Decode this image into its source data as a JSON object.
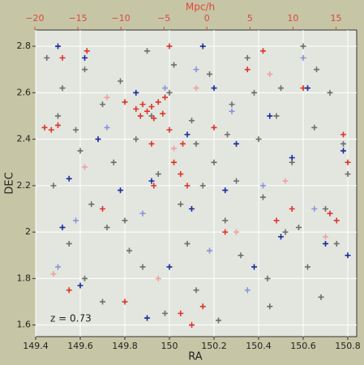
{
  "chart_data": {
    "type": "scatter",
    "xlabel": "RA",
    "ylabel": "DEC",
    "x2label": "Mpc/h",
    "annotation": "z = 0.73",
    "xlim": [
      149.4,
      150.84
    ],
    "ylim": [
      1.55,
      2.87
    ],
    "x2lim": [
      -19.9,
      17.4
    ],
    "xticks": [
      149.4,
      149.6,
      149.8,
      150.0,
      150.2,
      150.4,
      150.6,
      150.8
    ],
    "yticks": [
      1.6,
      1.8,
      2.0,
      2.2,
      2.4,
      2.6,
      2.8
    ],
    "x2ticks": [
      {
        "value": -20,
        "label": "−20"
      },
      {
        "value": -15,
        "label": "−15"
      },
      {
        "value": -10,
        "label": "−10"
      },
      {
        "value": -5,
        "label": "−5"
      },
      0,
      5,
      10,
      15
    ],
    "grid": true,
    "series": [
      {
        "color": "#6e6e6e",
        "x": [
          149.45,
          149.52,
          149.58,
          149.62,
          149.7,
          149.75,
          149.48,
          149.55,
          149.62,
          149.7,
          149.8,
          149.85,
          149.9,
          149.95,
          150.0,
          150.05,
          150.1,
          150.12,
          150.18,
          150.2,
          150.25,
          150.28,
          150.32,
          150.35,
          150.4,
          150.42,
          150.45,
          150.5,
          150.52,
          150.55,
          150.6,
          150.62,
          150.65,
          150.7,
          150.72,
          150.75,
          150.78,
          150.8,
          149.65,
          149.88,
          150.08,
          150.3,
          150.48,
          149.92,
          150.15,
          149.78,
          150.38,
          150.58,
          149.5,
          149.72,
          150.02,
          150.22,
          150.68,
          149.98,
          150.44,
          149.82,
          150.26,
          149.6,
          150.12,
          150.66
        ],
        "values": [
          2.75,
          2.62,
          2.44,
          2.7,
          2.55,
          2.3,
          2.2,
          1.95,
          1.8,
          1.7,
          2.05,
          2.4,
          2.78,
          2.25,
          2.6,
          2.12,
          2.48,
          1.75,
          2.68,
          2.3,
          2.05,
          2.55,
          1.9,
          2.75,
          2.4,
          2.15,
          1.68,
          2.62,
          2.0,
          2.3,
          2.8,
          1.85,
          2.45,
          2.1,
          2.6,
          1.95,
          2.38,
          2.25,
          2.12,
          1.85,
          1.95,
          2.22,
          2.5,
          2.5,
          2.2,
          2.65,
          2.6,
          2.02,
          2.5,
          2.02,
          2.72,
          1.62,
          1.72,
          1.65,
          1.8,
          1.92,
          2.42,
          2.35,
          2.38,
          2.7
        ]
      },
      {
        "color": "#e0332a",
        "x": [
          149.44,
          149.47,
          149.5,
          149.52,
          149.63,
          149.8,
          149.85,
          149.87,
          149.88,
          149.9,
          149.92,
          149.93,
          149.95,
          149.97,
          149.98,
          150.0,
          150.02,
          150.05,
          150.08,
          150.06,
          149.92,
          149.93,
          150.1,
          150.15,
          150.05,
          149.8,
          150.72,
          150.75,
          150.78,
          150.8,
          150.6,
          150.55,
          150.42,
          150.35,
          150.0,
          149.7,
          149.55,
          150.25,
          150.48,
          150.2
        ],
        "values": [
          2.45,
          2.44,
          2.46,
          2.75,
          2.78,
          2.56,
          2.53,
          2.5,
          2.55,
          2.52,
          2.54,
          2.49,
          2.56,
          2.51,
          2.58,
          2.44,
          2.3,
          2.25,
          2.2,
          2.38,
          2.38,
          2.2,
          1.6,
          1.68,
          1.65,
          1.7,
          2.08,
          2.05,
          2.42,
          2.3,
          2.62,
          2.1,
          2.78,
          2.7,
          2.8,
          2.1,
          1.75,
          2.0,
          2.05,
          2.45
        ]
      },
      {
        "color": "#1a2a9e",
        "x": [
          149.5,
          149.62,
          149.55,
          149.52,
          149.6,
          149.68,
          149.78,
          149.85,
          149.92,
          150.0,
          150.08,
          150.15,
          150.2,
          150.25,
          150.3,
          150.38,
          150.45,
          150.5,
          150.55,
          150.62,
          150.7,
          150.78,
          150.8,
          149.9,
          150.1
        ],
        "values": [
          2.8,
          2.75,
          2.23,
          2.02,
          1.77,
          2.4,
          2.18,
          2.6,
          2.22,
          1.85,
          2.42,
          2.8,
          2.62,
          2.18,
          2.38,
          1.85,
          2.5,
          1.98,
          2.32,
          2.62,
          1.95,
          2.35,
          1.9,
          1.63,
          2.1
        ]
      },
      {
        "color": "#8a94d8",
        "x": [
          149.58,
          149.72,
          149.98,
          150.12,
          150.28,
          150.42,
          150.6,
          150.65,
          150.18,
          149.88,
          149.5,
          150.35
        ],
        "values": [
          2.05,
          2.45,
          2.62,
          2.7,
          2.52,
          2.2,
          2.75,
          2.1,
          1.92,
          2.08,
          1.85,
          1.75
        ]
      },
      {
        "color": "#f0a0a0",
        "x": [
          149.48,
          149.72,
          149.95,
          150.12,
          150.3,
          150.52,
          150.7,
          150.45,
          150.02,
          149.62
        ],
        "values": [
          1.82,
          2.58,
          1.8,
          2.62,
          2.0,
          2.22,
          1.98,
          2.68,
          2.36,
          2.28
        ]
      }
    ]
  }
}
